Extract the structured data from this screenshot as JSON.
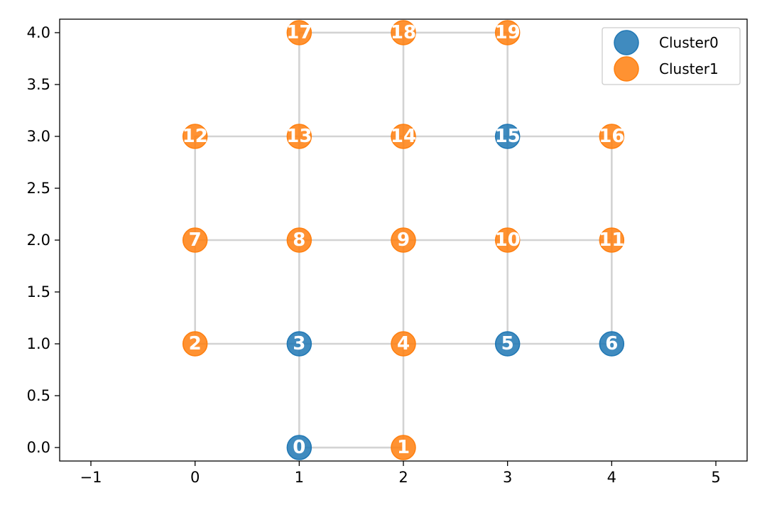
{
  "chart_data": {
    "type": "scatter",
    "title": "",
    "xlabel": "",
    "ylabel": "",
    "xlim": [
      -1.3,
      5.3
    ],
    "ylim": [
      -0.13,
      4.13
    ],
    "xticks": [
      -1,
      0,
      1,
      2,
      3,
      4,
      5
    ],
    "xtick_labels": [
      "−1",
      "0",
      "1",
      "2",
      "3",
      "4",
      "5"
    ],
    "yticks": [
      0.0,
      0.5,
      1.0,
      1.5,
      2.0,
      2.5,
      3.0,
      3.5,
      4.0
    ],
    "ytick_labels": [
      "0.0",
      "0.5",
      "1.0",
      "1.5",
      "2.0",
      "2.5",
      "3.0",
      "3.5",
      "4.0"
    ],
    "grid": false,
    "legend_position": "top-right",
    "edge_color": "#d3d3d3",
    "series": [
      {
        "name": "Cluster0",
        "color": "#1f77b4",
        "node_ids": [
          0,
          3,
          5,
          6,
          15
        ]
      },
      {
        "name": "Cluster1",
        "color": "#ff7f0e",
        "node_ids": [
          1,
          2,
          4,
          7,
          8,
          9,
          10,
          11,
          12,
          13,
          14,
          16,
          17,
          18,
          19
        ]
      }
    ],
    "nodes": [
      {
        "id": 0,
        "label": "0",
        "x": 1,
        "y": 0,
        "cluster": 0
      },
      {
        "id": 1,
        "label": "1",
        "x": 2,
        "y": 0,
        "cluster": 1
      },
      {
        "id": 2,
        "label": "2",
        "x": 0,
        "y": 1,
        "cluster": 1
      },
      {
        "id": 3,
        "label": "3",
        "x": 1,
        "y": 1,
        "cluster": 0
      },
      {
        "id": 4,
        "label": "4",
        "x": 2,
        "y": 1,
        "cluster": 1
      },
      {
        "id": 5,
        "label": "5",
        "x": 3,
        "y": 1,
        "cluster": 0
      },
      {
        "id": 6,
        "label": "6",
        "x": 4,
        "y": 1,
        "cluster": 0
      },
      {
        "id": 7,
        "label": "7",
        "x": 0,
        "y": 2,
        "cluster": 1
      },
      {
        "id": 8,
        "label": "8",
        "x": 1,
        "y": 2,
        "cluster": 1
      },
      {
        "id": 9,
        "label": "9",
        "x": 2,
        "y": 2,
        "cluster": 1
      },
      {
        "id": 10,
        "label": "10",
        "x": 3,
        "y": 2,
        "cluster": 1
      },
      {
        "id": 11,
        "label": "11",
        "x": 4,
        "y": 2,
        "cluster": 1
      },
      {
        "id": 12,
        "label": "12",
        "x": 0,
        "y": 3,
        "cluster": 1
      },
      {
        "id": 13,
        "label": "13",
        "x": 1,
        "y": 3,
        "cluster": 1
      },
      {
        "id": 14,
        "label": "14",
        "x": 2,
        "y": 3,
        "cluster": 1
      },
      {
        "id": 15,
        "label": "15",
        "x": 3,
        "y": 3,
        "cluster": 0
      },
      {
        "id": 16,
        "label": "16",
        "x": 4,
        "y": 3,
        "cluster": 1
      },
      {
        "id": 17,
        "label": "17",
        "x": 1,
        "y": 4,
        "cluster": 1
      },
      {
        "id": 18,
        "label": "18",
        "x": 2,
        "y": 4,
        "cluster": 1
      },
      {
        "id": 19,
        "label": "19",
        "x": 3,
        "y": 4,
        "cluster": 1
      }
    ],
    "edges": [
      [
        0,
        1
      ],
      [
        0,
        3
      ],
      [
        1,
        4
      ],
      [
        2,
        3
      ],
      [
        3,
        4
      ],
      [
        4,
        5
      ],
      [
        5,
        6
      ],
      [
        2,
        7
      ],
      [
        3,
        8
      ],
      [
        4,
        9
      ],
      [
        5,
        10
      ],
      [
        6,
        11
      ],
      [
        7,
        8
      ],
      [
        8,
        9
      ],
      [
        9,
        10
      ],
      [
        10,
        11
      ],
      [
        7,
        12
      ],
      [
        8,
        13
      ],
      [
        9,
        14
      ],
      [
        10,
        15
      ],
      [
        11,
        16
      ],
      [
        12,
        13
      ],
      [
        13,
        14
      ],
      [
        14,
        15
      ],
      [
        15,
        16
      ],
      [
        13,
        17
      ],
      [
        14,
        18
      ],
      [
        15,
        19
      ],
      [
        17,
        18
      ],
      [
        18,
        19
      ]
    ]
  }
}
